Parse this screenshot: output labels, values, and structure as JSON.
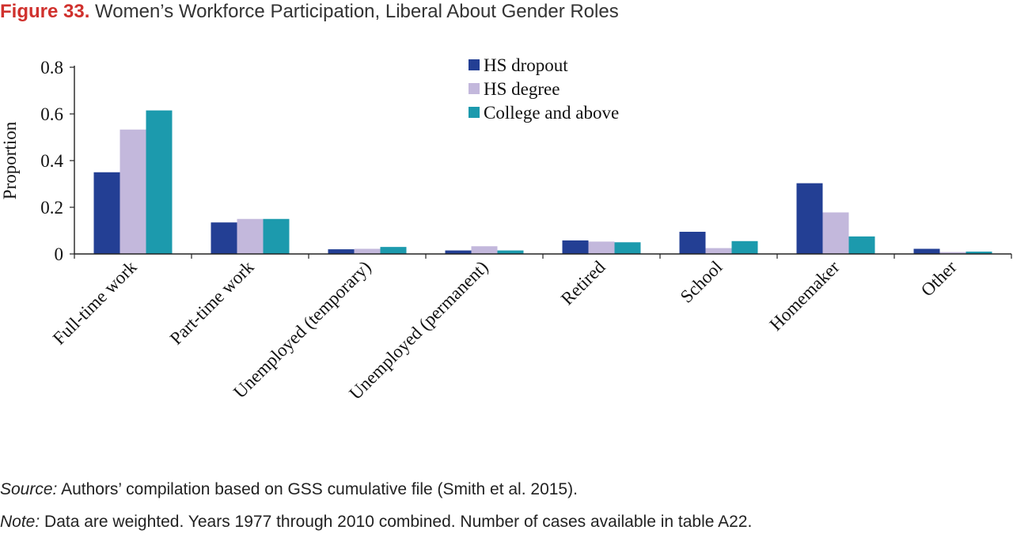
{
  "figure": {
    "number": "Figure 33.",
    "title": "Women’s Workforce Participation, Liberal About Gender Roles"
  },
  "notes": {
    "source_label": "Source:",
    "source_text": "Authors’ compilation based on GSS cumulative file (Smith et al. 2015).",
    "note_label": "Note:",
    "note_text": "Data are weighted. Years 1977 through 2010 combined. Number of cases available in table A22."
  },
  "chart_data": {
    "type": "bar",
    "title": "",
    "xlabel": "",
    "ylabel": "Proportion",
    "ylim": [
      0,
      0.8
    ],
    "yticks": [
      0,
      0.2,
      0.4,
      0.6,
      0.8
    ],
    "ytick_labels": [
      "0",
      "0.2",
      "0.4",
      "0.6",
      "0.8"
    ],
    "grid": false,
    "legend_position": "top-center",
    "categories": [
      "Full-time work",
      "Part-time work",
      "Unemployed (temporary)",
      "Unemployed (permanent)",
      "Retired",
      "School",
      "Homemaker",
      "Other"
    ],
    "series": [
      {
        "name": "HS dropout",
        "color": "#233f94",
        "values": [
          0.35,
          0.135,
          0.02,
          0.015,
          0.058,
          0.095,
          0.303,
          0.022
        ]
      },
      {
        "name": "HS degree",
        "color": "#c3b8dc",
        "values": [
          0.533,
          0.15,
          0.022,
          0.033,
          0.053,
          0.025,
          0.178,
          0.008
        ]
      },
      {
        "name": "College and above",
        "color": "#1c9aad",
        "values": [
          0.615,
          0.15,
          0.03,
          0.015,
          0.05,
          0.055,
          0.075,
          0.01
        ]
      }
    ]
  }
}
